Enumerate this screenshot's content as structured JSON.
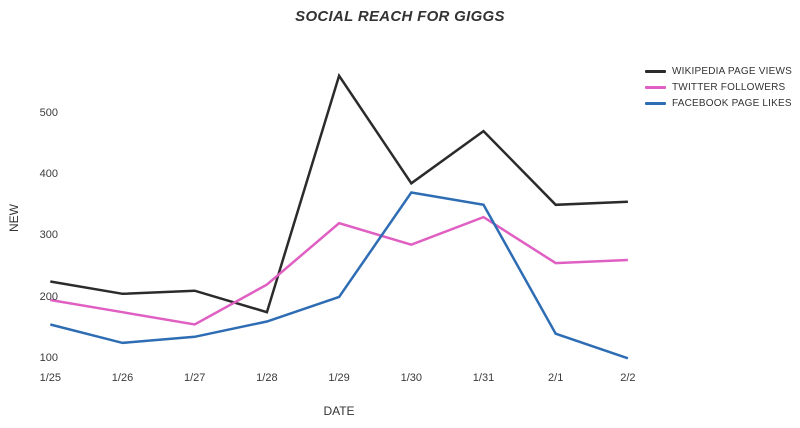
{
  "chart_data": {
    "type": "line",
    "title": "SOCIAL REACH FOR GIGGS",
    "xlabel": "DATE",
    "ylabel": "NEW",
    "categories": [
      "1/25",
      "1/26",
      "1/27",
      "1/28",
      "1/29",
      "1/30",
      "1/31",
      "2/1",
      "2/2"
    ],
    "yticks": [
      100,
      200,
      300,
      400,
      500
    ],
    "ylim": [
      60,
      600
    ],
    "grid": false,
    "legend_position": "top-right",
    "series": [
      {
        "name": "WIKIPEDIA PAGE VIEWS",
        "color": "#2b2b2b",
        "values": [
          225,
          205,
          210,
          175,
          560,
          385,
          470,
          350,
          355
        ]
      },
      {
        "name": "TWITTER FOLLOWERS",
        "color": "#e05fc2",
        "values": [
          195,
          175,
          155,
          220,
          320,
          285,
          330,
          255,
          260
        ]
      },
      {
        "name": "FACEBOOK PAGE LIKES",
        "color": "#2e6db4",
        "values": [
          155,
          125,
          135,
          160,
          200,
          370,
          350,
          140,
          100
        ]
      }
    ]
  }
}
